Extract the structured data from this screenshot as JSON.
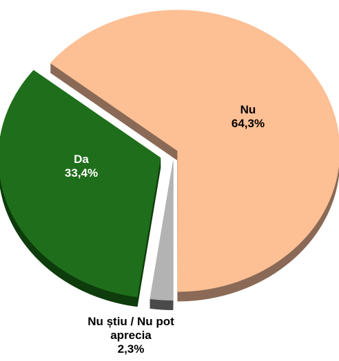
{
  "chart_data": {
    "type": "pie",
    "categories": [
      "Nu",
      "Nu știu / Nu pot aprecia",
      "Da"
    ],
    "values": [
      64.3,
      2.3,
      33.4
    ],
    "value_labels": [
      "64,3%",
      "2,3%",
      "33,4%"
    ],
    "colors": [
      "#fdbf94",
      "#b3b3b3",
      "#1f6e1b"
    ]
  }
}
